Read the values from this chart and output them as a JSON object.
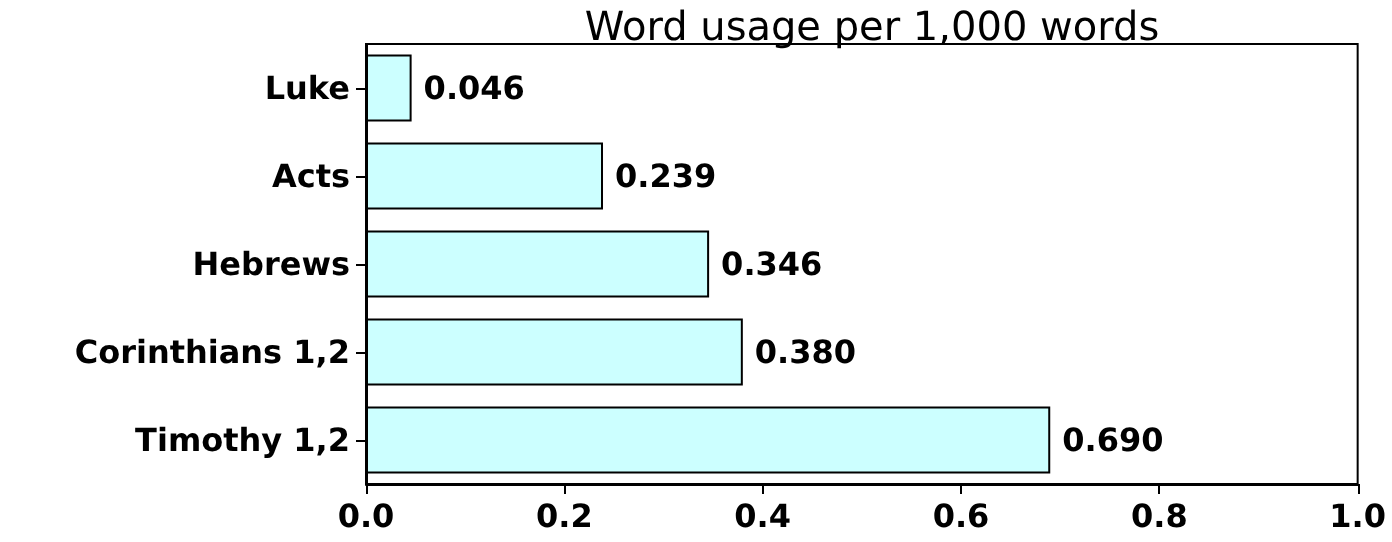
{
  "chart_data": {
    "type": "bar",
    "orientation": "horizontal",
    "title": "Word usage per 1,000 words",
    "categories": [
      "Luke",
      "Acts",
      "Hebrews",
      "Corinthians 1,2",
      "Timothy 1,2"
    ],
    "values": [
      0.046,
      0.239,
      0.346,
      0.38,
      0.69
    ],
    "value_labels": [
      "0.046",
      "0.239",
      "0.346",
      "0.380",
      "0.690"
    ],
    "color": "#ccffff",
    "xlim": [
      0,
      1
    ],
    "xticks": [
      {
        "value": 0,
        "label": "0.0"
      },
      {
        "value": 0.2,
        "label": "0.2"
      },
      {
        "value": 0.4,
        "label": "0.4"
      },
      {
        "value": 0.6,
        "label": "0.6"
      },
      {
        "value": 0.8,
        "label": "0.8"
      },
      {
        "value": 1,
        "label": "1.0"
      }
    ],
    "grid": false
  }
}
